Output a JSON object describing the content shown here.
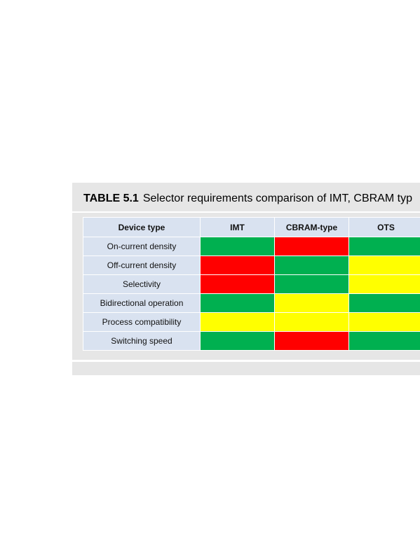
{
  "caption": {
    "label": "TABLE 5.1",
    "text": "Selector requirements comparison of IMT, CBRAM typ"
  },
  "colors": {
    "good": "#00b050",
    "bad": "#ff0000",
    "medium": "#ffff00",
    "header": "#d9e2f0"
  },
  "table": {
    "headers": [
      "Device type",
      "IMT",
      "CBRAM-type",
      "OTS"
    ],
    "rows": [
      {
        "label": "On-current density",
        "ratings": [
          "good",
          "bad",
          "good"
        ]
      },
      {
        "label": "Off-current density",
        "ratings": [
          "bad",
          "good",
          "medium"
        ]
      },
      {
        "label": "Selectivity",
        "ratings": [
          "bad",
          "good",
          "medium"
        ]
      },
      {
        "label": "Bidirectional operation",
        "ratings": [
          "good",
          "medium",
          "good"
        ]
      },
      {
        "label": "Process compatibility",
        "ratings": [
          "medium",
          "medium",
          "medium"
        ]
      },
      {
        "label": "Switching speed",
        "ratings": [
          "good",
          "bad",
          "good"
        ]
      }
    ]
  }
}
